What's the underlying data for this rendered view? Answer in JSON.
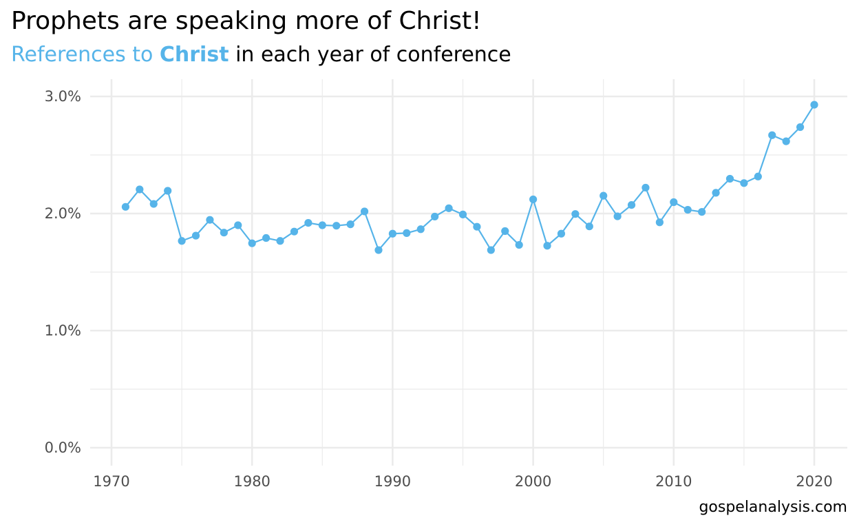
{
  "title": "Prophets are speaking more of Christ!",
  "subtitle": {
    "prefix": "References to ",
    "keyword": "Christ",
    "suffix": " in each year of conference"
  },
  "caption": "gospelanalysis.com",
  "colors": {
    "series": "#56B4E9",
    "grid": "#ebebeb",
    "tick_text": "#4d4d4d"
  },
  "chart_data": {
    "type": "line",
    "title": "Prophets are speaking more of Christ!",
    "subtitle": "References to Christ in each year of conference",
    "xlabel": "",
    "ylabel": "",
    "xlim": [
      1970,
      2022
    ],
    "ylim": [
      0,
      0.03
    ],
    "grid": true,
    "x_ticks": [
      1970,
      1980,
      1990,
      2000,
      2010,
      2020
    ],
    "x_tick_labels": [
      "1970",
      "1980",
      "1990",
      "2000",
      "2010",
      "2020"
    ],
    "y_ticks": [
      0,
      0.01,
      0.02,
      0.03
    ],
    "y_tick_labels": [
      "0.0%",
      "1.0%",
      "2.0%",
      "3.0%"
    ],
    "x": [
      1971,
      1972,
      1973,
      1974,
      1975,
      1976,
      1977,
      1978,
      1979,
      1980,
      1981,
      1982,
      1983,
      1984,
      1985,
      1986,
      1987,
      1988,
      1989,
      1990,
      1991,
      1992,
      1993,
      1994,
      1995,
      1996,
      1997,
      1998,
      1999,
      2000,
      2001,
      2002,
      2003,
      2004,
      2005,
      2006,
      2007,
      2008,
      2009,
      2010,
      2011,
      2012,
      2013,
      2014,
      2015,
      2016,
      2017,
      2018,
      2019,
      2020
    ],
    "y": [
      0.02057,
      0.02206,
      0.02082,
      0.02194,
      0.01766,
      0.01811,
      0.01946,
      0.01837,
      0.019,
      0.01746,
      0.01791,
      0.01766,
      0.01846,
      0.0192,
      0.019,
      0.01896,
      0.01908,
      0.02018,
      0.01688,
      0.01828,
      0.01833,
      0.01866,
      0.01974,
      0.02045,
      0.01992,
      0.01887,
      0.01688,
      0.0185,
      0.01732,
      0.02121,
      0.01725,
      0.01828,
      0.01996,
      0.0189,
      0.02152,
      0.01976,
      0.02073,
      0.02221,
      0.01925,
      0.02097,
      0.02032,
      0.02014,
      0.02177,
      0.02297,
      0.0226,
      0.02316,
      0.02669,
      0.02617,
      0.02738,
      0.02929
    ]
  }
}
